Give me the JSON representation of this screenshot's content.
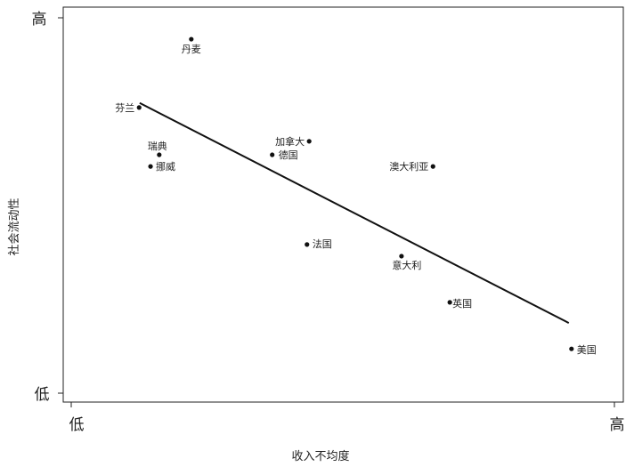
{
  "chart_data": {
    "type": "scatter",
    "title": "",
    "xlabel": "收入不均度",
    "ylabel": "社会流动性",
    "x_ticks": [
      "低",
      "高"
    ],
    "y_ticks": [
      "低",
      "高"
    ],
    "xlim": [
      0,
      1
    ],
    "ylim": [
      0,
      1
    ],
    "grid": false,
    "points": [
      {
        "label": "丹麦",
        "x": 0.221,
        "y": 0.943
      },
      {
        "label": "芬兰",
        "x": 0.125,
        "y": 0.761
      },
      {
        "label": "瑞典",
        "x": 0.162,
        "y": 0.635
      },
      {
        "label": "挪威",
        "x": 0.146,
        "y": 0.604
      },
      {
        "label": "加拿大",
        "x": 0.438,
        "y": 0.671
      },
      {
        "label": "德国",
        "x": 0.37,
        "y": 0.635
      },
      {
        "label": "澳大利亚",
        "x": 0.666,
        "y": 0.604
      },
      {
        "label": "法国",
        "x": 0.434,
        "y": 0.396
      },
      {
        "label": "意大利",
        "x": 0.608,
        "y": 0.365
      },
      {
        "label": "英国",
        "x": 0.697,
        "y": 0.242
      },
      {
        "label": "美国",
        "x": 0.921,
        "y": 0.118
      }
    ],
    "trend_line": {
      "x": [
        0.126,
        0.916
      ],
      "y": [
        0.773,
        0.187
      ]
    },
    "colors": {
      "points": "#111111",
      "line": "#111111"
    }
  }
}
